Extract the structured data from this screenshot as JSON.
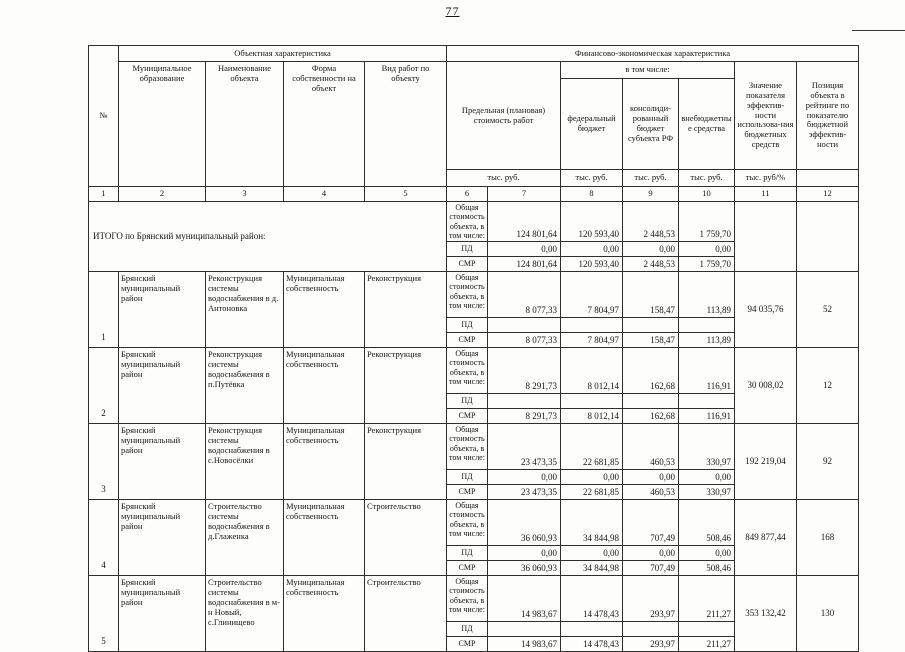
{
  "page": {
    "number": "77"
  },
  "table": {
    "header": {
      "no": "№",
      "group_object": "Объектная характеристика",
      "group_financial": "Финансово-экономическая характеристика",
      "col_municipality": "Муниципальное образование",
      "col_object_name": "Наименование объекта",
      "col_ownership": "Форма собственности на объект",
      "col_work_type": "Вид работ по объекту",
      "col_planned_cost": "Предельная (плановая) стоимость работ",
      "including": "в том числе:",
      "col_federal": "федеральный бюджет",
      "col_consolidated": "консолиди-рованный бюджет субъекта РФ",
      "col_extrabudget": "внебюджетные средства",
      "col_efficiency": "Значение показателя эффектив-ности использова-ния бюджетных средств",
      "col_rating": "Позиция объекта в рейтинге по показателю бюджетной эффектив-ности",
      "units": [
        "тыс. руб.",
        "тыс. руб.",
        "тыс. руб.",
        "тыс. руб.",
        "тыс. руб/%",
        ""
      ],
      "col_numbers": [
        "1",
        "2",
        "3",
        "4",
        "5",
        "6",
        "7",
        "8",
        "9",
        "10",
        "11",
        "12"
      ]
    },
    "row_labels": {
      "total_cost": "Общая стоимость объекта, в том числе:",
      "pd": "ПД",
      "smr": "СМР"
    },
    "summary": {
      "label": "ИТОГО по Брянский муниципальный район:",
      "total": [
        "124 801,64",
        "120 593,40",
        "2 448,53",
        "1 759,70"
      ],
      "pd": [
        "0,00",
        "0,00",
        "0,00",
        "0,00"
      ],
      "smr": [
        "124 801,64",
        "120 593,40",
        "2 448,53",
        "1 759,70"
      ],
      "efficiency": "",
      "rating": ""
    },
    "rows": [
      {
        "no": "1",
        "municipality": "Брянский муниципальный район",
        "object_name": "Реконструкция системы водоснабжения в д. Антоновка",
        "ownership": "Муниципальная собственность",
        "work_type": "Реконструкция",
        "total": [
          "8 077,33",
          "7 804,97",
          "158,47",
          "113,89"
        ],
        "pd": [
          "",
          "",
          "",
          ""
        ],
        "smr": [
          "8 077,33",
          "7 804,97",
          "158,47",
          "113,89"
        ],
        "efficiency": "94 035,76",
        "rating": "52"
      },
      {
        "no": "2",
        "municipality": "Брянский муниципальный район",
        "object_name": "Реконструкция системы водоснабжения в п.Путёвка",
        "ownership": "Муниципальная собственность",
        "work_type": "Реконструкция",
        "total": [
          "8 291,73",
          "8 012,14",
          "162,68",
          "116,91"
        ],
        "pd": [
          "",
          "",
          "",
          ""
        ],
        "smr": [
          "8 291,73",
          "8 012,14",
          "162,68",
          "116,91"
        ],
        "efficiency": "30 008,02",
        "rating": "12"
      },
      {
        "no": "3",
        "municipality": "Брянский муниципальный район",
        "object_name": "Реконструкция системы водоснабжения в с.Новосёлки",
        "ownership": "Муниципальная собственность",
        "work_type": "Реконструкция",
        "total": [
          "23 473,35",
          "22 681,85",
          "460,53",
          "330,97"
        ],
        "pd": [
          "0,00",
          "0,00",
          "0,00",
          "0,00"
        ],
        "smr": [
          "23 473,35",
          "22 681,85",
          "460,53",
          "330,97"
        ],
        "efficiency": "192 219,04",
        "rating": "92"
      },
      {
        "no": "4",
        "municipality": "Брянский муниципальный район",
        "object_name": "Строительство системы водоснабжения в д.Глаженка",
        "ownership": "Муниципальная собственность",
        "work_type": "Строительство",
        "total": [
          "36 060,93",
          "34 844,98",
          "707,49",
          "508,46"
        ],
        "pd": [
          "0,00",
          "0,00",
          "0,00",
          "0,00"
        ],
        "smr": [
          "36 060,93",
          "34 844,98",
          "707,49",
          "508,46"
        ],
        "efficiency": "849 877,44",
        "rating": "168"
      },
      {
        "no": "5",
        "municipality": "Брянский муниципальный район",
        "object_name": "Строительство системы водоснабжения в м-н Новый, с.Глинищево",
        "ownership": "Муниципальная собственность",
        "work_type": "Строительство",
        "total": [
          "14 983,67",
          "14 478,43",
          "293,97",
          "211,27"
        ],
        "pd": [
          "",
          "",
          "",
          ""
        ],
        "smr": [
          "14 983,67",
          "14 478,43",
          "293,97",
          "211,27"
        ],
        "efficiency": "353 132,42",
        "rating": "130"
      }
    ]
  }
}
